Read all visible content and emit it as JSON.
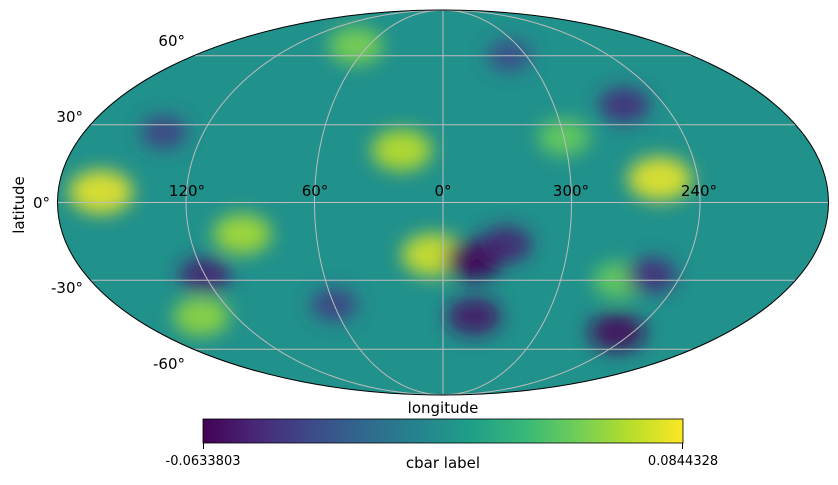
{
  "chart_data": {
    "type": "heatmap",
    "projection": "mollweide",
    "title": "",
    "xlabel": "longitude",
    "ylabel": "latitude",
    "longitude_ticks": [
      "120°",
      "60°",
      "0°",
      "300°",
      "240°"
    ],
    "latitude_ticks": [
      "60°",
      "30°",
      "0°",
      "-30°",
      "-60°"
    ],
    "grid": true,
    "colormap": "viridis",
    "colorbar": {
      "label": "cbar label",
      "min": -0.0633803,
      "max": 0.0844328,
      "min_label": "-0.0633803",
      "max_label": "0.0844328",
      "placement": "bottom"
    },
    "features": [
      {
        "lon": 160,
        "lat": 4,
        "value": 0.08
      },
      {
        "lon": 258,
        "lat": 9,
        "value": 0.08
      },
      {
        "lon": 5,
        "lat": -20,
        "value": 0.075
      },
      {
        "lon": 20,
        "lat": 20,
        "value": 0.07
      },
      {
        "lon": 95,
        "lat": -12,
        "value": 0.065
      },
      {
        "lon": 140,
        "lat": -45,
        "value": 0.06
      },
      {
        "lon": 70,
        "lat": 65,
        "value": 0.055
      },
      {
        "lon": 300,
        "lat": 25,
        "value": 0.05
      },
      {
        "lon": 270,
        "lat": -30,
        "value": 0.05
      },
      {
        "lon": 345,
        "lat": -22,
        "value": -0.063
      },
      {
        "lon": 330,
        "lat": -16,
        "value": -0.05
      },
      {
        "lon": 342,
        "lat": -45,
        "value": -0.055
      },
      {
        "lon": 250,
        "lat": -52,
        "value": -0.06
      },
      {
        "lon": 255,
        "lat": -28,
        "value": -0.045
      },
      {
        "lon": 120,
        "lat": -28,
        "value": -0.05
      },
      {
        "lon": 262,
        "lat": 38,
        "value": -0.045
      },
      {
        "lon": 60,
        "lat": -40,
        "value": -0.035
      },
      {
        "lon": 312,
        "lat": 60,
        "value": -0.03
      },
      {
        "lon": 140,
        "lat": 27,
        "value": -0.035
      }
    ]
  }
}
